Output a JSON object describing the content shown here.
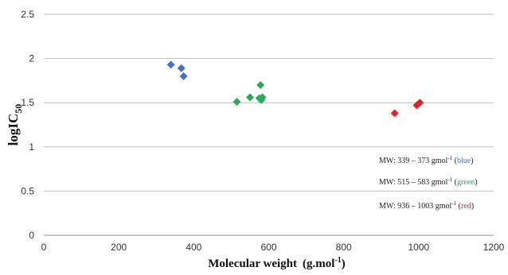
{
  "chart_data": {
    "type": "scatter",
    "xlabel": "Molecular weight",
    "xlabel_units": "(g.mol",
    "xlabel_units_sup": "-1",
    "xlabel_units_close": ")",
    "ylabel": "logIC",
    "ylabel_sub": "50",
    "xlim": [
      0,
      1200
    ],
    "ylim": [
      0,
      2.5
    ],
    "xticks": [
      "0",
      "200",
      "400",
      "600",
      "800",
      "1000",
      "1200"
    ],
    "yticks": [
      "0",
      "0.5",
      "1",
      "1.5",
      "2",
      "2.5"
    ],
    "grid": "horizontal",
    "marker": "diamond",
    "series": [
      {
        "color": "#4472c4",
        "points": [
          {
            "x": 339,
            "y": 1.93
          },
          {
            "x": 367,
            "y": 1.89
          },
          {
            "x": 373,
            "y": 1.8
          }
        ]
      },
      {
        "color": "#2ca85a",
        "points": [
          {
            "x": 515,
            "y": 1.51
          },
          {
            "x": 550,
            "y": 1.56
          },
          {
            "x": 575,
            "y": 1.55
          },
          {
            "x": 578,
            "y": 1.7
          },
          {
            "x": 580,
            "y": 1.53
          },
          {
            "x": 583,
            "y": 1.56
          }
        ]
      },
      {
        "color": "#d62728",
        "points": [
          {
            "x": 936,
            "y": 1.38
          },
          {
            "x": 995,
            "y": 1.47
          },
          {
            "x": 1003,
            "y": 1.5
          }
        ]
      }
    ],
    "annotations": [
      {
        "prefix": "MW: 339 – 373 gmol",
        "sup": "-1",
        "space": " (",
        "word": "blue",
        "suffix": ")",
        "color": "#4472c4"
      },
      {
        "prefix": "MW: 515 – 583 gmol",
        "sup": "-1",
        "space": " (",
        "word": "green",
        "suffix": ")",
        "color": "#2ca85a"
      },
      {
        "prefix": "MW: 936 – 1003 gmol",
        "sup": "-1",
        "space": " (",
        "word": "red",
        "suffix": ")",
        "color": "#d62728"
      }
    ]
  }
}
